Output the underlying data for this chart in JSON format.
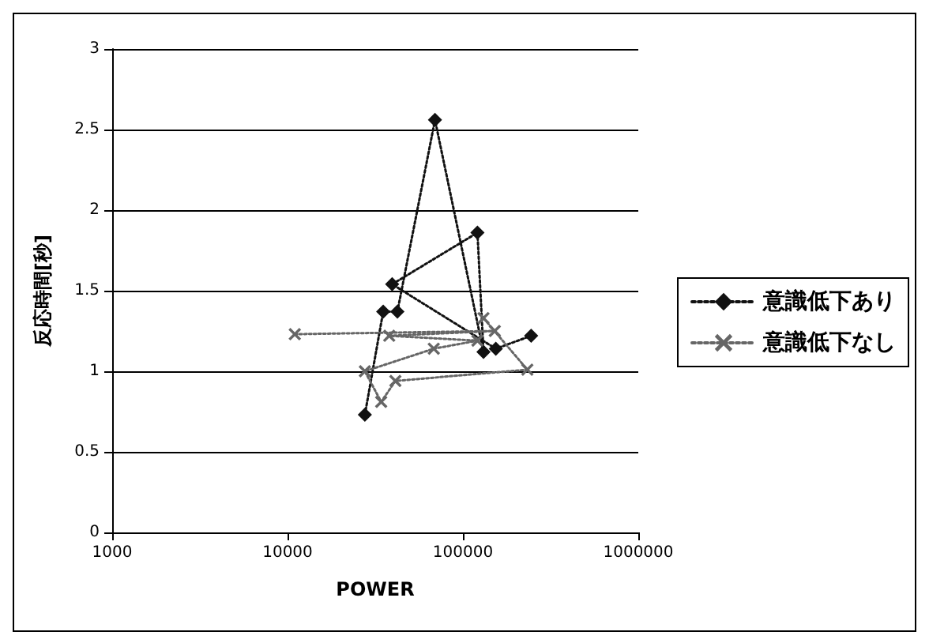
{
  "chart_data": {
    "type": "line",
    "xlabel": "POWER",
    "ylabel": "反応時間[秒]",
    "log": "x",
    "xlim": [
      1000,
      1000000
    ],
    "xticks": [
      1000,
      10000,
      100000,
      1000000
    ],
    "ylim": [
      0,
      3
    ],
    "yticks": [
      0,
      0.5,
      1,
      1.5,
      2,
      2.5,
      3
    ],
    "grid": "y",
    "legend": "right",
    "line_style": "dotted",
    "series": [
      {
        "name": "意識低下あり",
        "color": "#111111",
        "marker": "diamond",
        "x": [
          27600,
          35100,
          42300,
          69300,
          131000,
          121000,
          39500,
          154000,
          245000
        ],
        "values": [
          0.73,
          1.37,
          1.37,
          2.56,
          1.12,
          1.86,
          1.54,
          1.14,
          1.22
        ]
      },
      {
        "name": "意識低下なし",
        "color": "#666666",
        "marker": "cross",
        "x": [
          11000,
          152000,
          38000,
          121000,
          68200,
          27600,
          34200,
          41200,
          233000,
          131000
        ],
        "values": [
          1.23,
          1.25,
          1.22,
          1.19,
          1.14,
          1.0,
          0.81,
          0.94,
          1.01,
          1.33
        ]
      }
    ]
  }
}
